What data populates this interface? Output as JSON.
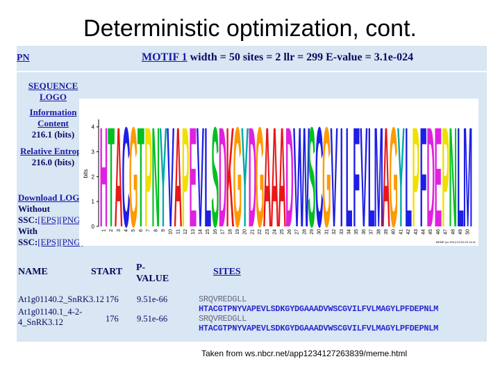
{
  "slide": {
    "title": "Deterministic optimization, cont.",
    "caption": "Taken from ws.nbcr.net/app1234127263839/meme.html"
  },
  "header": {
    "corner_link": "PN",
    "motif_link": "MOTIF 1",
    "motif_stats": "width = 50 sites = 2 llr = 299 E-value = 3.1e-024"
  },
  "sidebar": {
    "sequence_logo": [
      "SEQUENCE",
      "LOGO"
    ],
    "information_content_label": [
      "Information",
      "Content"
    ],
    "information_content_value": "216.1 (bits)",
    "relative_entropy_label": "Relative Entropy",
    "relative_entropy_value": "216.0 (bits)",
    "download_logo": "Download LOGO",
    "without": "Without",
    "with": "With",
    "ssc": "SSC:",
    "eps_png": "[EPS][PNG]"
  },
  "logo": {
    "ylabel": "bits",
    "yticks": [
      "0",
      "1",
      "2",
      "3",
      "4"
    ],
    "letters": "HTACGTPNYVAPEVLSDKGYDGAAADVWSCGVILFVLMAGYLPFDEPNLM",
    "positions": [
      "1",
      "2",
      "3",
      "4",
      "5",
      "6",
      "7",
      "8",
      "9",
      "10",
      "11",
      "12",
      "13",
      "14",
      "15",
      "16",
      "17",
      "18",
      "19",
      "20",
      "21",
      "22",
      "23",
      "24",
      "25",
      "26",
      "27",
      "28",
      "29",
      "30",
      "31",
      "32",
      "33",
      "34",
      "35",
      "36",
      "37",
      "38",
      "39",
      "40",
      "41",
      "42",
      "43",
      "44",
      "45",
      "46",
      "47",
      "48",
      "49",
      "50"
    ],
    "footer": "MEME (no SSC) 03.02.09 14:41",
    "colors": {
      "green": "#00c020",
      "blue": "#1e1ee6",
      "red": "#e81818",
      "yellow": "#f0e000",
      "magenta": "#e020e0",
      "orange": "#ff9a00",
      "teal": "#00a8a8",
      "black": "#111111"
    }
  },
  "table": {
    "headers": {
      "name": "NAME",
      "start": "START",
      "pvalue": [
        "P-",
        "VALUE"
      ],
      "sites": "SITES"
    },
    "rows": [
      {
        "name": [
          "At1g01140.2_SnRK3.12"
        ],
        "start": "176",
        "pvalue": "9.51e-66",
        "left_flank": "SRQVREDGLL",
        "site": "HTACGTPNYVAPEVLSDKGYDGAAADVWSCGVILFVLMAGYLPFDEPNLM"
      },
      {
        "name": [
          "At1g01140.1_4-2-",
          "4_SnRK3.12"
        ],
        "start": "176",
        "pvalue": "9.51e-66",
        "left_flank": "SRQVREDGLL",
        "site": "HTACGTPNYVAPEVLSDKGYDGAAADVWSCGVILFVLMAGYLPFDEPNLM"
      }
    ]
  }
}
